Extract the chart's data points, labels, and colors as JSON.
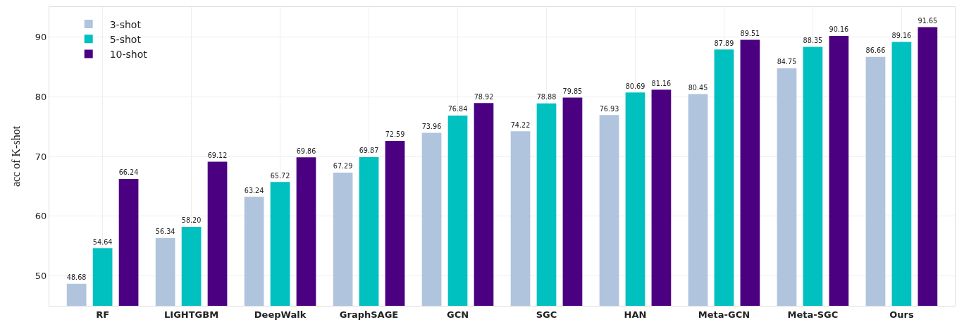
{
  "chart_data": {
    "type": "bar",
    "ylabel": "acc of K-shot",
    "categories": [
      "RF",
      "LIGHTGBM",
      "DeepWalk",
      "GraphSAGE",
      "GCN",
      "SGC",
      "HAN",
      "Meta-GCN",
      "Meta-SGC",
      "Ours"
    ],
    "series": [
      {
        "name": "3-shot",
        "color": "#b0c4de",
        "values": [
          48.68,
          56.34,
          63.24,
          67.29,
          73.96,
          74.22,
          76.93,
          80.45,
          84.75,
          86.66
        ],
        "value_labels": [
          "48.68",
          "56.34",
          "63.24",
          "67.29",
          "73.96",
          "74.22",
          "76.93",
          "80.45",
          "84.75",
          "86.66"
        ]
      },
      {
        "name": "5-shot",
        "color": "#00c0c0",
        "values": [
          54.64,
          58.2,
          65.72,
          69.87,
          76.84,
          78.88,
          80.69,
          87.89,
          88.35,
          89.16
        ],
        "value_labels": [
          "54.64",
          "58.20",
          "65.72",
          "69.87",
          "76.84",
          "78.88",
          "80.69",
          "87.89",
          "88.35",
          "89.16"
        ]
      },
      {
        "name": "10-shot",
        "color": "#4b0082",
        "values": [
          66.24,
          69.12,
          69.86,
          72.59,
          78.92,
          79.85,
          81.16,
          89.51,
          90.16,
          91.65
        ],
        "value_labels": [
          "66.24",
          "69.12",
          "69.86",
          "72.59",
          "78.92",
          "79.85",
          "81.16",
          "89.51",
          "90.16",
          "91.65"
        ]
      }
    ],
    "ylim": [
      45,
      95
    ],
    "yticks": [
      50,
      60,
      70,
      80,
      90
    ],
    "grid": true,
    "legend": "top left"
  }
}
